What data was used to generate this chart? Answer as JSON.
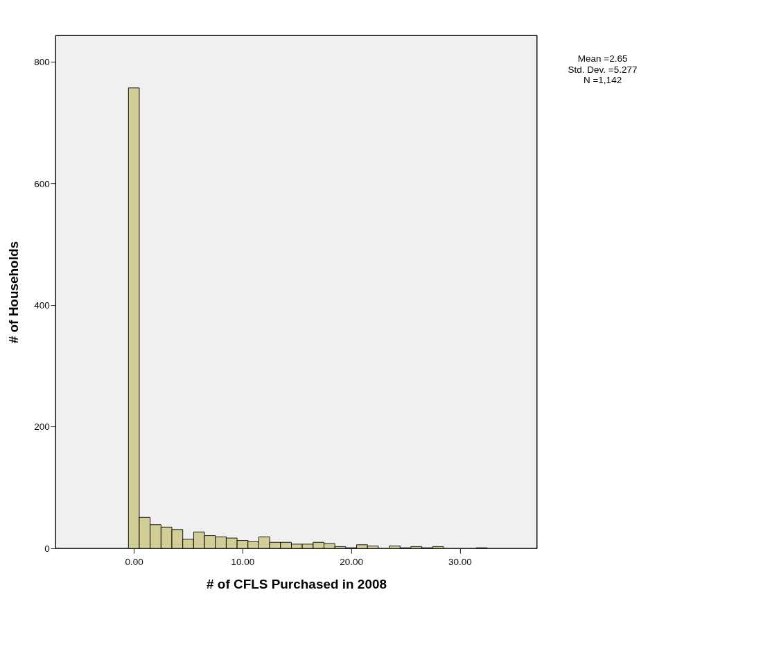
{
  "chart_data": {
    "type": "histogram",
    "xlabel": "# of CFLS Purchased in 2008",
    "ylabel": "# of Households",
    "bins": [
      -0.5,
      0.5,
      1.5,
      2.5,
      3.5,
      4.5,
      5.5,
      6.5,
      7.5,
      8.5,
      9.5,
      10.5,
      11.5,
      12.5,
      13.5,
      14.5,
      15.5,
      16.5,
      17.5,
      18.5,
      19.5,
      20.5,
      21.5,
      22.5,
      23.5,
      24.5,
      25.5,
      26.5,
      27.5,
      28.5,
      29.5,
      30.5,
      31.5,
      32.5
    ],
    "values": [
      757,
      51,
      39,
      35,
      31,
      15,
      27,
      21,
      19,
      17,
      13,
      11,
      19,
      10,
      10,
      7,
      7,
      10,
      8,
      3,
      1,
      6,
      4,
      0,
      4,
      1,
      3,
      1,
      3,
      0,
      0,
      0,
      1
    ],
    "color": "#d3ce97",
    "xlim": [
      -7.2,
      37.1
    ],
    "ylim": [
      0,
      843
    ],
    "xticks": [
      {
        "value": 0,
        "label": "0.00"
      },
      {
        "value": 10,
        "label": "10.00"
      },
      {
        "value": 20,
        "label": "20.00"
      },
      {
        "value": 30,
        "label": "30.00"
      }
    ],
    "yticks": [
      0,
      200,
      400,
      600,
      800
    ],
    "grid": false,
    "annotations": [
      "Mean =2.65",
      "Std. Dev. =5.277",
      "N =1,142"
    ]
  }
}
